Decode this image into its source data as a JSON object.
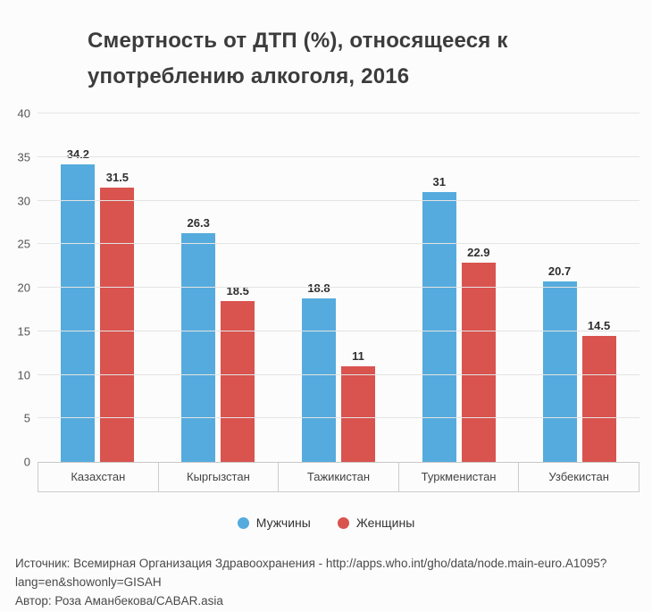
{
  "title": "Смертность от ДТП (%), относящееся к употреблению алкоголя, 2016",
  "source": {
    "line1": "Источник: Всемирная Организация Здравоохранения - http://apps.who.int/gho/data/node.main-euro.A1095?lang=en&showonly=GISAH",
    "line2": "Автор: Роза Аманбекова/CABAR.asia"
  },
  "colors": {
    "men": "#55abdd",
    "women": "#d9534f"
  },
  "chart_data": {
    "type": "bar",
    "title": "Смертность от ДТП (%), относящееся к употреблению алкоголя, 2016",
    "categories": [
      "Казахстан",
      "Кыргызстан",
      "Тажикистан",
      "Туркменистан",
      "Узбекистан"
    ],
    "series": [
      {
        "id": "men",
        "name": "Мужчины",
        "color": "#55abdd",
        "values": [
          34.2,
          26.3,
          18.8,
          31,
          20.7
        ]
      },
      {
        "id": "women",
        "name": "Женщины",
        "color": "#d9534f",
        "values": [
          31.5,
          18.5,
          11,
          22.9,
          14.5
        ]
      }
    ],
    "xlabel": "",
    "ylabel": "",
    "ylim": [
      0,
      40
    ],
    "yticks": [
      0,
      5,
      10,
      15,
      20,
      25,
      30,
      35,
      40
    ],
    "grid": true,
    "legend_position": "bottom"
  }
}
